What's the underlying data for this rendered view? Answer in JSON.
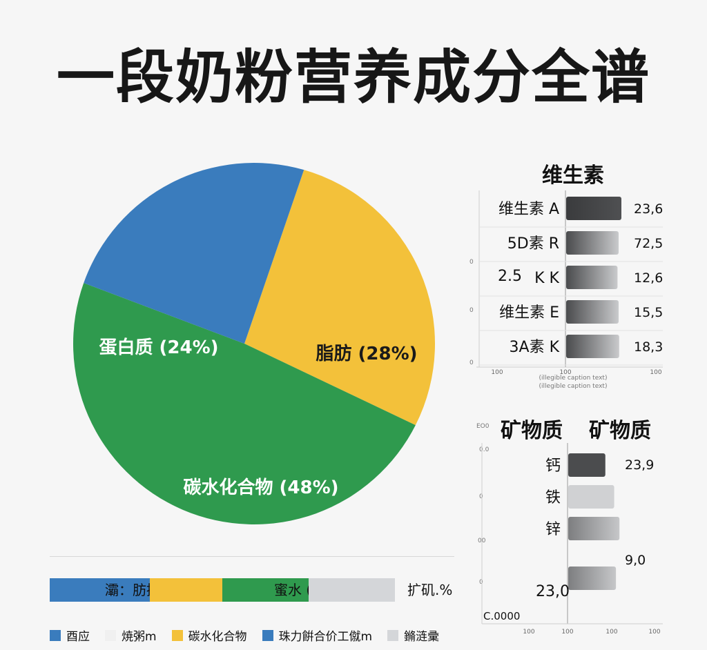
{
  "title": "一段奶粉营养成分全谱",
  "colors": {
    "blue": "#3a7cbd",
    "yellow": "#f3c13a",
    "green": "#2f9a4e",
    "gray": "#d4d6d9",
    "bar_dark": "#4a4b4d",
    "bar_light": "#c9cacc"
  },
  "chart_data": [
    {
      "type": "pie",
      "slices": [
        {
          "label": "蛋白质 (24%)",
          "value": 24,
          "color": "#3a7cbd"
        },
        {
          "label": "脂肪 (28%)",
          "value": 28,
          "color": "#f3c13a"
        },
        {
          "label": "碳水化合物 (48%)",
          "value": 48,
          "color": "#2f9a4e"
        }
      ]
    },
    {
      "type": "bar",
      "orientation": "horizontal",
      "title": "维生素",
      "categories": [
        "维生素 A",
        "5D素 R",
        "K K",
        "维生素 E",
        "3A素 K"
      ],
      "values": [
        23.6,
        72.5,
        12.6,
        15.5,
        18.3
      ],
      "value_labels": [
        "23,6",
        "72,5",
        "12,6",
        "15,5",
        "18,3"
      ],
      "bar_extent": [
        1.0,
        0.95,
        0.93,
        0.95,
        0.96
      ],
      "extra_text": "2.5",
      "axis_ticks_y": [
        "0",
        "0",
        "0"
      ],
      "axis_ticks_x": [
        "100",
        "100",
        "100"
      ],
      "caption_lines": [
        "(illegible caption text)",
        "(illegible caption text)"
      ]
    },
    {
      "type": "bar",
      "orientation": "horizontal",
      "title": "矿物质",
      "title_repeat": "矿物质",
      "categories": [
        "钙",
        "铁",
        "锌",
        ""
      ],
      "values": [
        23.9,
        null,
        null,
        9.0
      ],
      "value_labels": [
        "23,9",
        "",
        "",
        "9,0"
      ],
      "bar_extent": [
        0.42,
        0.52,
        0.58,
        0.54
      ],
      "extra_text": "23,0",
      "corner_text": "C.0000",
      "corner_top": "EO0",
      "axis_ticks_y": [
        "0.0",
        "0",
        "00",
        "0"
      ],
      "axis_ticks_x": [
        "100",
        "100",
        "100",
        "100"
      ]
    }
  ],
  "stacked_bar": {
    "segments": [
      {
        "text": "灞：肪据%",
        "color": "#3a7cbd",
        "share": 0.29
      },
      {
        "text": "",
        "color": "#f3c13a",
        "share": 0.21
      },
      {
        "text": "蜜水 (匀%)",
        "color": "#2f9a4e",
        "share": 0.25
      },
      {
        "text": "",
        "color": "#d4d6d9",
        "share": 0.25
      }
    ],
    "end_label": "扩矶.%"
  },
  "legend": [
    {
      "label": "酉应",
      "color": "#3a7cbd"
    },
    {
      "label": "焼粥m",
      "color": "#f0f0f0"
    },
    {
      "label": "碳水化合物",
      "color": "#f3c13a"
    },
    {
      "label": "珠力餠合价工僦m",
      "color": "#3a7cbd"
    },
    {
      "label": "鏅涟彚",
      "color": "#d4d6d9"
    }
  ]
}
